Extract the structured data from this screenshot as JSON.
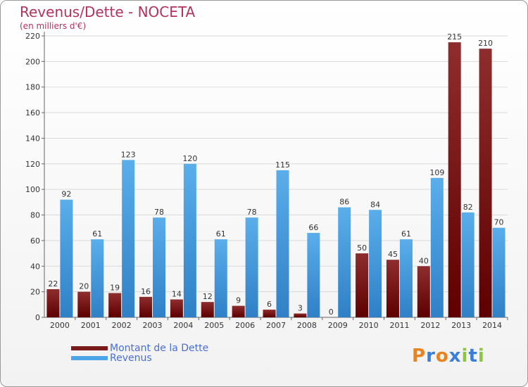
{
  "chart_data": {
    "type": "bar",
    "title": "Revenus/Dette - NOCETA",
    "subtitle": "(en milliers d'€)",
    "categories": [
      "2000",
      "2001",
      "2002",
      "2003",
      "2004",
      "2005",
      "2006",
      "2007",
      "2008",
      "2009",
      "2010",
      "2011",
      "2012",
      "2013",
      "2014"
    ],
    "series": [
      {
        "name": "Montant de la Dette",
        "color": "#7a1a1a",
        "values": [
          22,
          20,
          19,
          16,
          14,
          12,
          9,
          6,
          3,
          0,
          50,
          45,
          40,
          215,
          210
        ]
      },
      {
        "name": "Revenus",
        "color": "#4da6e8",
        "values": [
          92,
          61,
          123,
          78,
          120,
          61,
          78,
          115,
          66,
          86,
          84,
          61,
          109,
          82,
          70
        ]
      }
    ],
    "y_ticks": [
      0,
      20,
      40,
      60,
      80,
      100,
      120,
      140,
      160,
      180,
      200,
      220
    ],
    "ylim": [
      0,
      220
    ],
    "grid": true,
    "legend_position": "bottom-left"
  },
  "logo": {
    "letters": [
      "P",
      "r",
      "o",
      "x",
      "i",
      "t",
      "i"
    ],
    "colors": [
      "#e8831f",
      "#3a7fd5",
      "#e8831f",
      "#3a7fd5",
      "#8cc63f",
      "#3a7fd5",
      "#8cc63f"
    ]
  }
}
